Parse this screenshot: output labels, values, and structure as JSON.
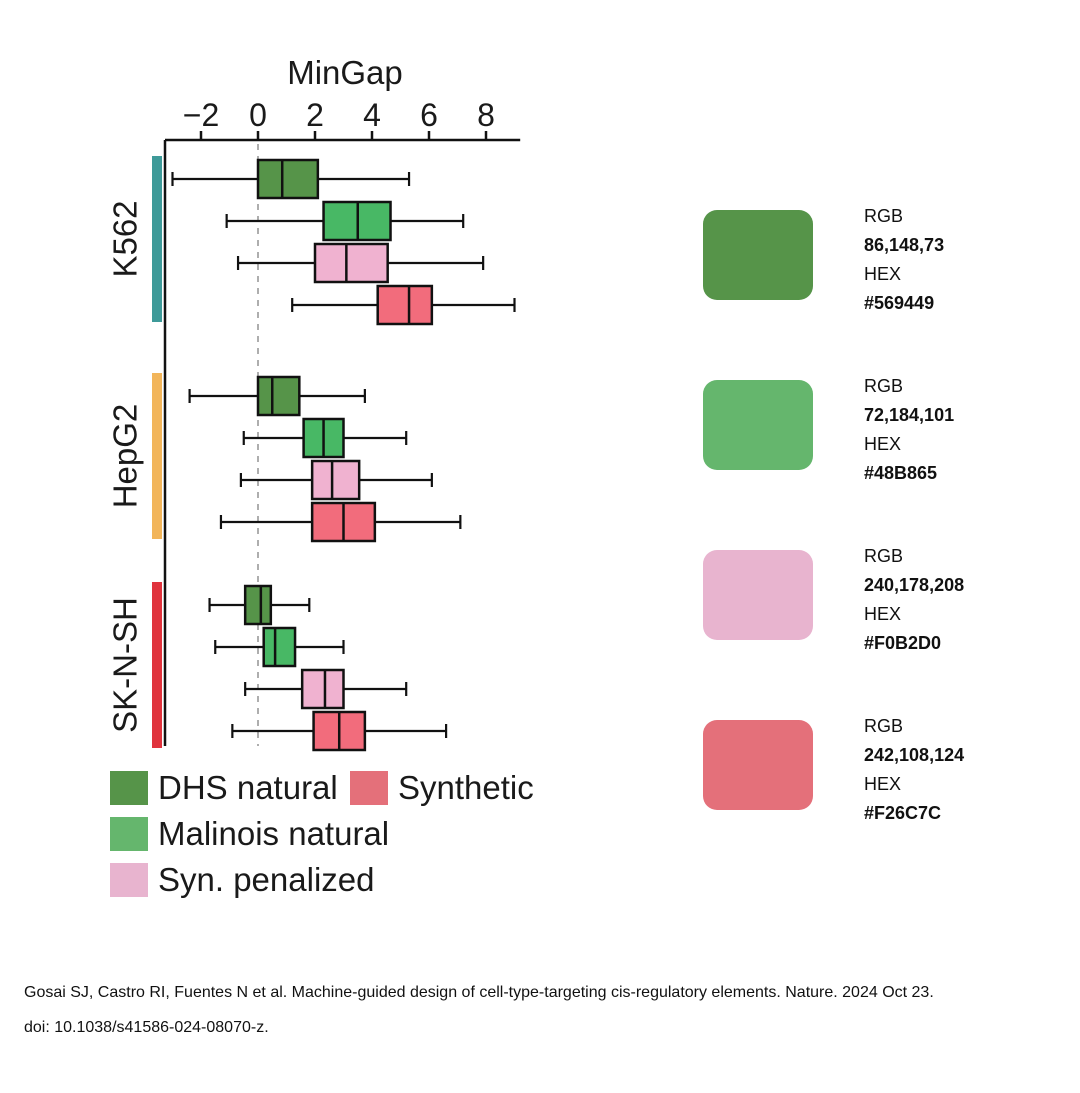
{
  "chart_data": {
    "type": "boxplot",
    "orientation": "horizontal",
    "xlabel": "MinGap",
    "xticks": [
      -2,
      0,
      2,
      4,
      6,
      8
    ],
    "xlim": [
      -3.3,
      9.2
    ],
    "reference_line": 0,
    "series": [
      {
        "name": "DHS natural",
        "color": "#569449"
      },
      {
        "name": "Malinois natural",
        "color": "#48B865"
      },
      {
        "name": "Syn. penalized",
        "color": "#F0B2D0"
      },
      {
        "name": "Synthetic",
        "color": "#F26C7C"
      }
    ],
    "groups": [
      {
        "label": "K562",
        "bar_color": "#3E9A99",
        "boxes": [
          {
            "series": "DHS natural",
            "whisker_low": -3.0,
            "q1": 0.0,
            "median": 0.85,
            "q3": 2.1,
            "whisker_high": 5.3
          },
          {
            "series": "Malinois natural",
            "whisker_low": -1.1,
            "q1": 2.3,
            "median": 3.5,
            "q3": 4.65,
            "whisker_high": 7.2
          },
          {
            "series": "Syn. penalized",
            "whisker_low": -0.7,
            "q1": 2.0,
            "median": 3.1,
            "q3": 4.55,
            "whisker_high": 7.9
          },
          {
            "series": "Synthetic",
            "whisker_low": 1.2,
            "q1": 4.2,
            "median": 5.3,
            "q3": 6.1,
            "whisker_high": 9.0
          }
        ]
      },
      {
        "label": "HepG2",
        "bar_color": "#F2B55A",
        "boxes": [
          {
            "series": "DHS natural",
            "whisker_low": -2.4,
            "q1": 0.0,
            "median": 0.5,
            "q3": 1.45,
            "whisker_high": 3.75
          },
          {
            "series": "Malinois natural",
            "whisker_low": -0.5,
            "q1": 1.6,
            "median": 2.3,
            "q3": 3.0,
            "whisker_high": 5.2
          },
          {
            "series": "Syn. penalized",
            "whisker_low": -0.6,
            "q1": 1.9,
            "median": 2.6,
            "q3": 3.55,
            "whisker_high": 6.1
          },
          {
            "series": "Synthetic",
            "whisker_low": -1.3,
            "q1": 1.9,
            "median": 3.0,
            "q3": 4.1,
            "whisker_high": 7.1
          }
        ]
      },
      {
        "label": "SK-N-SH",
        "bar_color": "#E0333D",
        "boxes": [
          {
            "series": "DHS natural",
            "whisker_low": -1.7,
            "q1": -0.45,
            "median": 0.1,
            "q3": 0.45,
            "whisker_high": 1.8
          },
          {
            "series": "Malinois natural",
            "whisker_low": -1.5,
            "q1": 0.2,
            "median": 0.6,
            "q3": 1.3,
            "whisker_high": 3.0
          },
          {
            "series": "Syn. penalized",
            "whisker_low": -0.45,
            "q1": 1.55,
            "median": 2.35,
            "q3": 3.0,
            "whisker_high": 5.2
          },
          {
            "series": "Synthetic",
            "whisker_low": -0.9,
            "q1": 1.95,
            "median": 2.85,
            "q3": 3.75,
            "whisker_high": 6.6
          }
        ]
      }
    ]
  },
  "legend": {
    "items": [
      "DHS natural",
      "Synthetic",
      "Malinois natural",
      "Syn. penalized"
    ]
  },
  "palette": [
    {
      "rgb_label": "RGB",
      "rgb": "86,148,73",
      "hex_label": "HEX",
      "hex": "#569449",
      "color": "#569449"
    },
    {
      "rgb_label": "RGB",
      "rgb": "72,184,101",
      "hex_label": "HEX",
      "hex": "#48B865",
      "color": "#65B66D"
    },
    {
      "rgb_label": "RGB",
      "rgb": "240,178,208",
      "hex_label": "HEX",
      "hex": "#F0B2D0",
      "color": "#E8B4CF"
    },
    {
      "rgb_label": "RGB",
      "rgb": "242,108,124",
      "hex_label": "HEX",
      "hex": "#F26C7C",
      "color": "#E4707A"
    }
  ],
  "citation": {
    "line1": "Gosai SJ, Castro RI, Fuentes N et al. Machine-guided design of cell-type-targeting cis-regulatory elements. Nature. 2024 Oct 23.",
    "line2": "doi: 10.1038/s41586-024-08070-z."
  }
}
